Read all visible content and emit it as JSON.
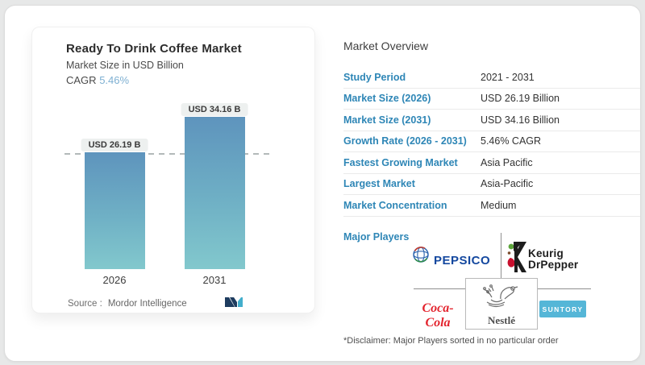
{
  "left_card": {
    "title": "Ready To Drink Coffee Market",
    "subtitle": "Market Size in USD Billion",
    "cagr_label": "CAGR",
    "cagr_value": "5.46%",
    "source_label": "Source :",
    "source_value": "Mordor Intelligence"
  },
  "chart_data": {
    "type": "bar",
    "categories": [
      "2026",
      "2031"
    ],
    "values": [
      26.19,
      34.16
    ],
    "value_labels": [
      "USD 26.19 B",
      "USD 34.16 B"
    ],
    "title": "Ready To Drink Coffee Market",
    "ylabel": "Market Size in USD Billion",
    "unit": "USD Billion",
    "reference_line": 26.19,
    "bar_gradient_top": "#5e94bd",
    "bar_gradient_bottom": "#82c8cd"
  },
  "overview": {
    "title": "Market Overview",
    "rows": [
      {
        "label": "Study Period",
        "value": "2021 - 2031"
      },
      {
        "label": "Market Size (2026)",
        "value": "USD 26.19 Billion"
      },
      {
        "label": "Market Size (2031)",
        "value": "USD 34.16 Billion"
      },
      {
        "label": "Growth Rate (2026 - 2031)",
        "value": "5.46% CAGR"
      },
      {
        "label": "Fastest Growing Market",
        "value": "Asia Pacific"
      },
      {
        "label": "Largest Market",
        "value": "Asia-Pacific"
      },
      {
        "label": "Market Concentration",
        "value": "Medium"
      }
    ],
    "major_players_label": "Major Players",
    "players": [
      {
        "name": "PepsiCo",
        "wordmark": "PEPSICO"
      },
      {
        "name": "Keurig Dr Pepper",
        "line1": "Keurig",
        "line2": "DrPepper"
      },
      {
        "name": "Coca-Cola",
        "wordmark": "Coca-Cola"
      },
      {
        "name": "Nestlé",
        "wordmark": "Nestlé"
      },
      {
        "name": "Suntory",
        "wordmark": "SUNTORY"
      }
    ],
    "disclaimer": "*Disclaimer: Major Players sorted in no particular order"
  },
  "colors": {
    "label_blue": "#2e86b6",
    "cagr_blue": "#7eb0d2",
    "pepsico_blue": "#14489f",
    "coke_red": "#e3242e",
    "suntory_blue": "#55b6d7",
    "kdp_red": "#c8102e",
    "kdp_green": "#5da53b",
    "mordor_navy": "#1e3c5f",
    "mordor_teal": "#43aecc"
  }
}
